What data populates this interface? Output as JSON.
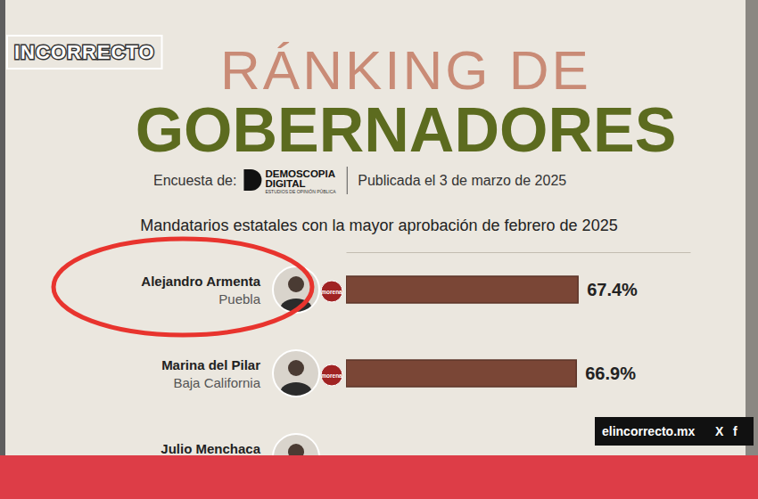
{
  "page": {
    "logo": "INCORRECTO",
    "survey_label": "Encuesta de:",
    "pollster": "DEMOSCOPIA",
    "pollster_line2": "DIGITAL",
    "pollster_tagline": "ESTUDIOS DE OPINIÓN PÚBLICA",
    "published": "Publicada el 3 de marzo de 2025",
    "states": [
      "Puebla",
      "Baja California",
      null
    ],
    "parties": [
      "morena",
      "morena",
      null
    ],
    "website": "elincorrecto.mx",
    "social": [
      "X",
      "f"
    ]
  },
  "chart_data": {
    "type": "bar",
    "orientation": "horizontal",
    "title": "RÁNKING DE GOBERNADORES",
    "subtitle": "Mandatarios estatales con la mayor aprobación de febrero de 2025",
    "categories": [
      "Alejandro Armenta",
      "Marina del Pilar",
      "Julio Menchaca"
    ],
    "values": [
      67.4,
      66.9,
      null
    ],
    "value_labels": [
      "67.4%",
      "66.9%",
      null
    ],
    "data_labels": true,
    "color": "#7a4636",
    "xlim": [
      0,
      100
    ],
    "tick_labels": false
  }
}
